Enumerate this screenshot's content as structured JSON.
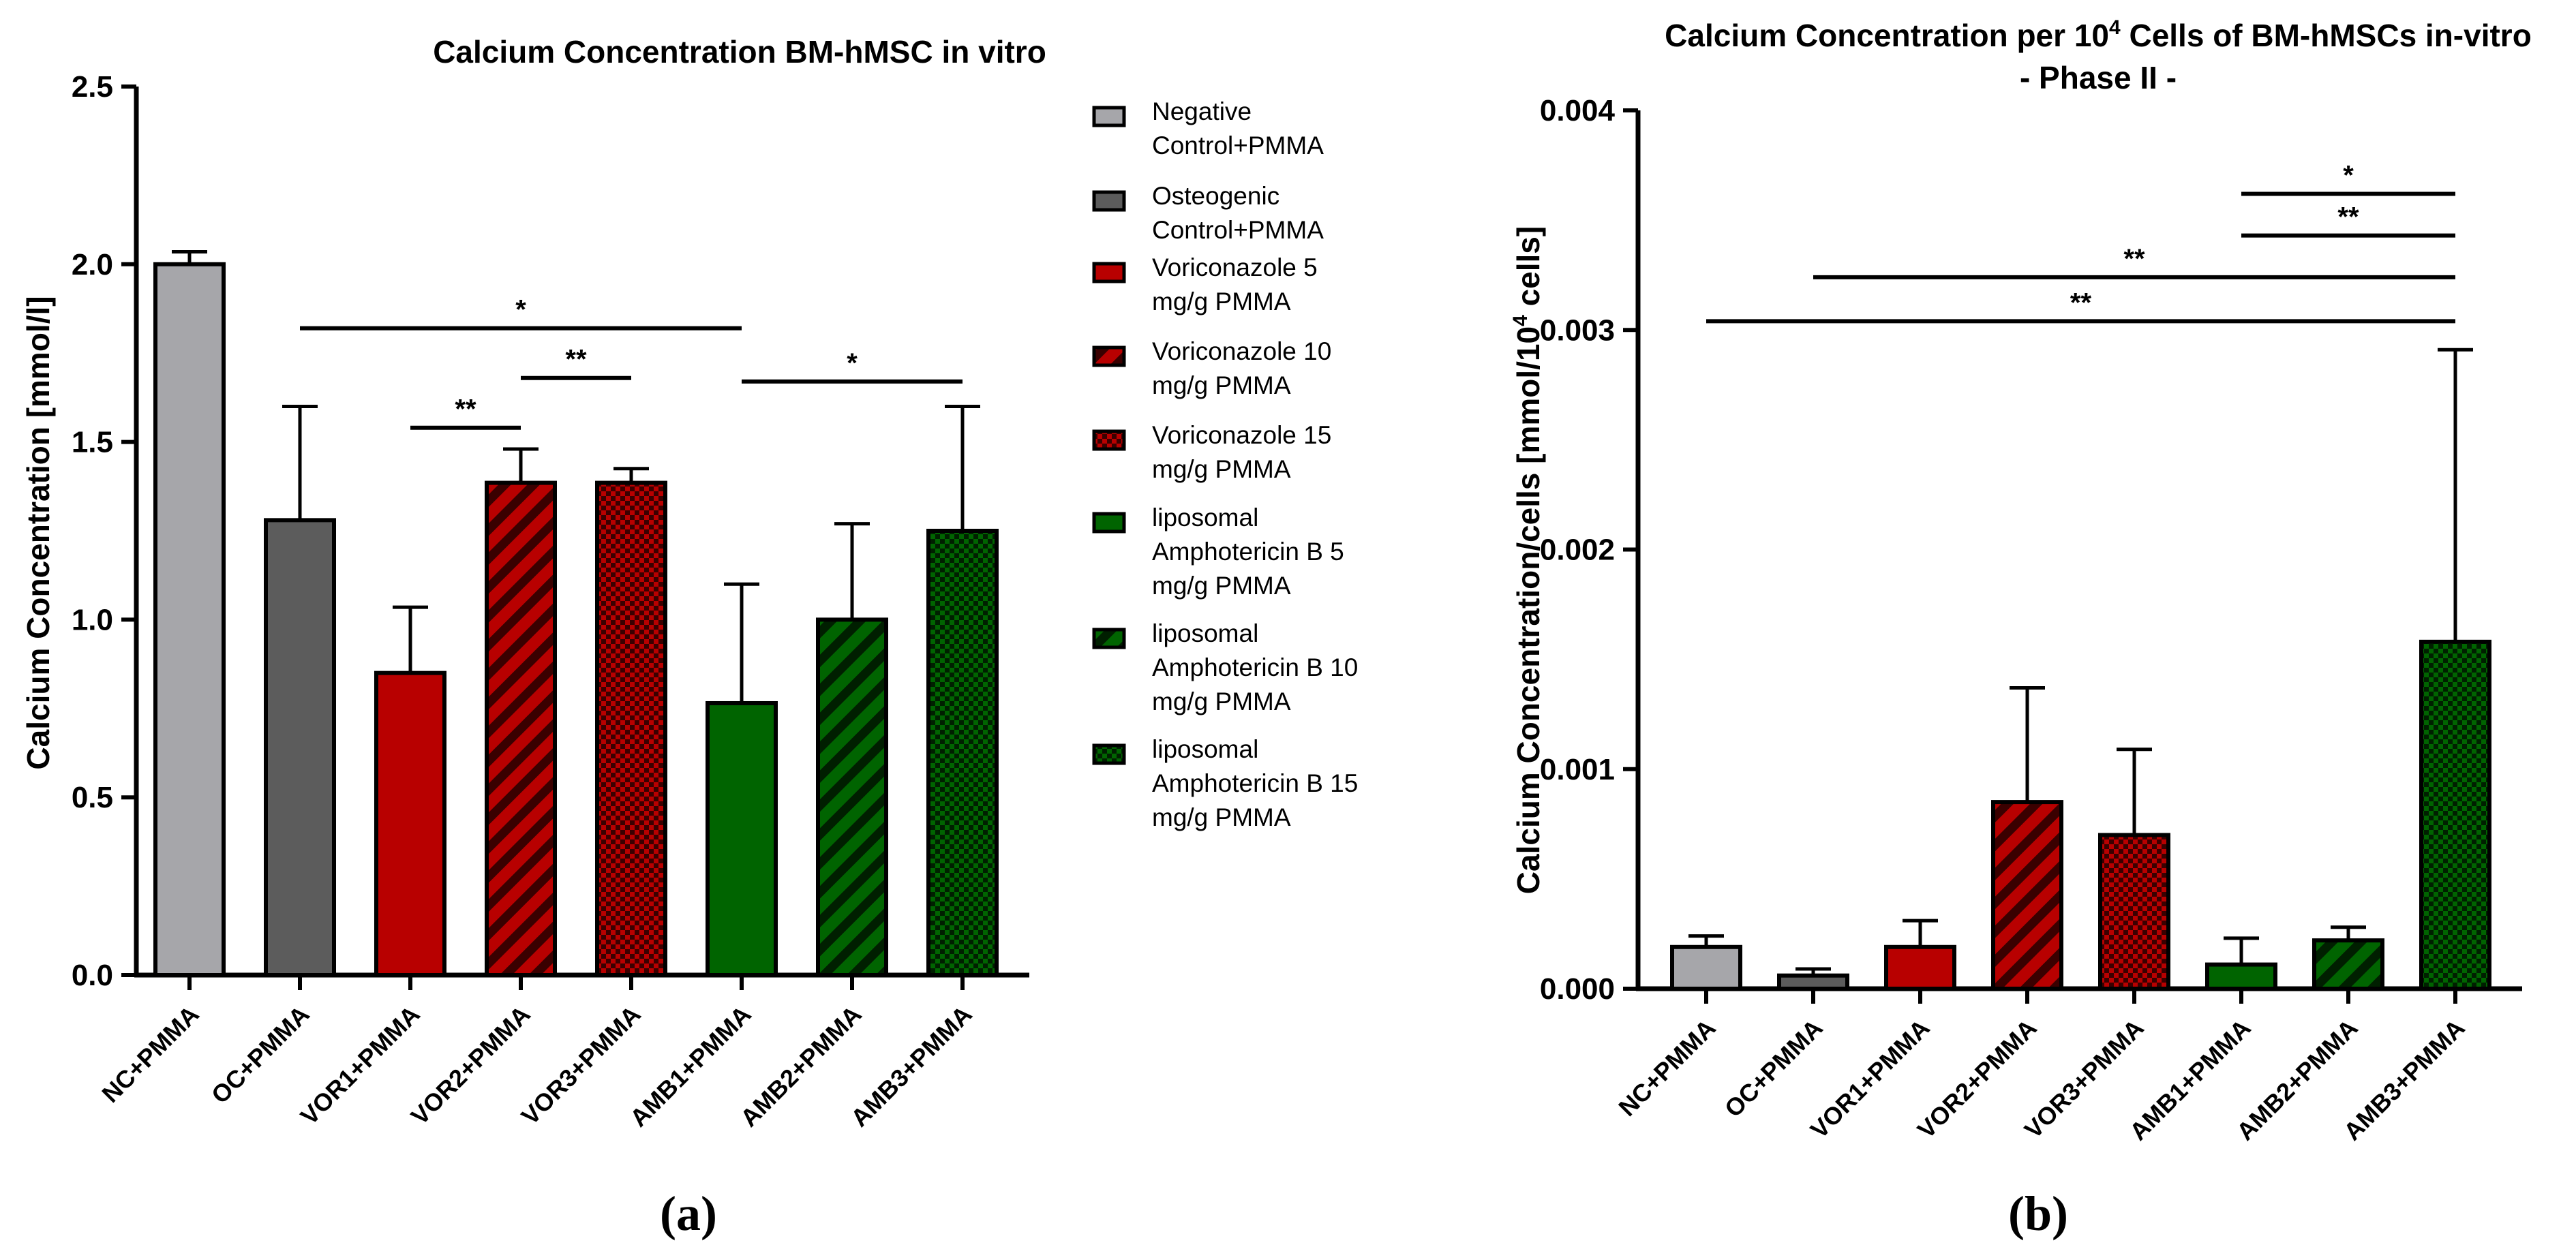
{
  "colors": {
    "nc": "#a6a6aa",
    "oc": "#5c5c5c",
    "red": "#b80000",
    "green": "#006400",
    "dark_red": "#3a0000",
    "dark_green": "#001f00",
    "axis": "#000000"
  },
  "legend": {
    "items": [
      {
        "lines": [
          "Negative",
          "Control+PMMA"
        ],
        "pattern": "solid-nc"
      },
      {
        "lines": [
          "Osteogenic",
          "Control+PMMA"
        ],
        "pattern": "solid-oc"
      },
      {
        "lines": [
          "Voriconazole 5",
          "mg/g PMMA"
        ],
        "pattern": "solid-red"
      },
      {
        "lines": [
          "Voriconazole 10",
          "mg/g PMMA"
        ],
        "pattern": "stripe-red"
      },
      {
        "lines": [
          "Voriconazole 15",
          "mg/g PMMA"
        ],
        "pattern": "check-red"
      },
      {
        "lines": [
          "liposomal",
          "Amphotericin B 5",
          "mg/g PMMA"
        ],
        "pattern": "solid-green"
      },
      {
        "lines": [
          "liposomal",
          "Amphotericin B 10",
          "mg/g PMMA"
        ],
        "pattern": "stripe-green"
      },
      {
        "lines": [
          "liposomal",
          "Amphotericin B 15",
          "mg/g PMMA"
        ],
        "pattern": "check-green"
      }
    ]
  },
  "chart_data": [
    {
      "type": "bar",
      "panel_label": "(a)",
      "title": "Calcium Concentration BM-hMSC in vitro",
      "ylabel": "Calcium Concentration [mmol/l]",
      "xlabel": "",
      "ylim": [
        0,
        2.5
      ],
      "yticks": [
        0.0,
        0.5,
        1.0,
        1.5,
        2.0,
        2.5
      ],
      "ytick_labels": [
        "0.0",
        "0.5",
        "1.0",
        "1.5",
        "2.0",
        "2.5"
      ],
      "categories": [
        "NC+PMMA",
        "OC+PMMA",
        "VOR1+PMMA",
        "VOR2+PMMA",
        "VOR3+PMMA",
        "AMB1+PMMA",
        "AMB2+PMMA",
        "AMB3+PMMA"
      ],
      "values": [
        2.0,
        1.28,
        0.85,
        1.385,
        1.385,
        0.765,
        1.0,
        1.25
      ],
      "errors": [
        0.035,
        0.32,
        0.185,
        0.095,
        0.04,
        0.335,
        0.27,
        0.35
      ],
      "patterns": [
        "solid-nc",
        "solid-oc",
        "solid-red",
        "stripe-red",
        "check-red",
        "solid-green",
        "stripe-green",
        "check-green"
      ],
      "significance": [
        {
          "from": 2,
          "to": 3,
          "y": 1.54,
          "label": "**"
        },
        {
          "from": 3,
          "to": 4,
          "y": 1.68,
          "label": "**"
        },
        {
          "from": 1,
          "to": 5,
          "y": 1.82,
          "label": "*"
        },
        {
          "from": 5,
          "to": 7,
          "y": 1.67,
          "label": "*"
        }
      ],
      "grid": false
    },
    {
      "type": "bar",
      "panel_label": "(b)",
      "title": "Calcium Concentration per 10",
      "title_sup": "4",
      "title_rest": " Cells of BM-hMSCs in-vitro",
      "subtitle": "- Phase II -",
      "ylabel": "Calcium Concentration/cells [mmol/10",
      "ylabel_sup": "4",
      "ylabel_rest": " cells]",
      "xlabel": "",
      "ylim": [
        0,
        0.004
      ],
      "yticks": [
        0.0,
        0.001,
        0.002,
        0.003,
        0.004
      ],
      "ytick_labels": [
        "0.000",
        "0.001",
        "0.002",
        "0.003",
        "0.004"
      ],
      "categories": [
        "NC+PMMA",
        "OC+PMMA",
        "VOR1+PMMA",
        "VOR2+PMMA",
        "VOR3+PMMA",
        "AMB1+PMMA",
        "AMB2+PMMA",
        "AMB3+PMMA"
      ],
      "values": [
        0.00019,
        6e-05,
        0.00019,
        0.00085,
        0.0007,
        0.00011,
        0.00022,
        0.00158
      ],
      "errors": [
        5e-05,
        3e-05,
        0.00012,
        0.00052,
        0.00039,
        0.00012,
        6e-05,
        0.00133
      ],
      "patterns": [
        "solid-nc",
        "solid-oc",
        "solid-red",
        "stripe-red",
        "check-red",
        "solid-green",
        "stripe-green",
        "check-green"
      ],
      "significance": [
        {
          "from": 5,
          "to": 7,
          "y": 0.00362,
          "label": "*"
        },
        {
          "from": 5,
          "to": 7,
          "y": 0.00343,
          "label": "**"
        },
        {
          "from": 1,
          "to": 7,
          "y": 0.00324,
          "label": "**"
        },
        {
          "from": 0,
          "to": 7,
          "y": 0.00304,
          "label": "**"
        }
      ],
      "grid": false
    }
  ]
}
